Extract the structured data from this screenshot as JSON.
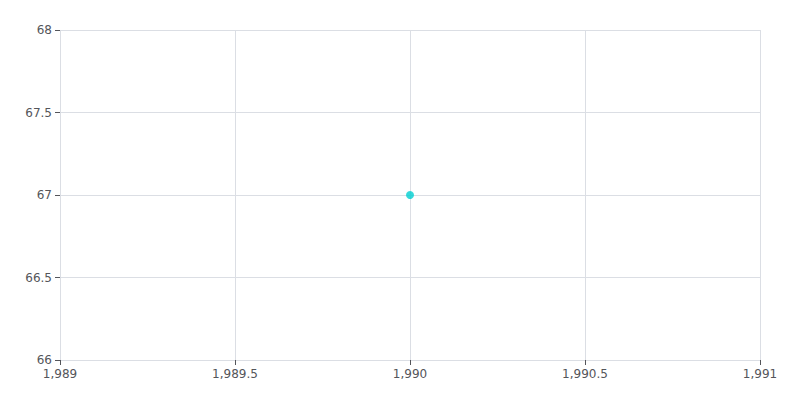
{
  "chart_data": {
    "type": "scatter",
    "x": [
      1990
    ],
    "values": [
      67.0
    ],
    "color": "#00CED1",
    "xlim": [
      1989,
      1991
    ],
    "xticks": [
      {
        "value": 1989,
        "label": "1,989"
      },
      {
        "value": 1989.5,
        "label": "1,989.5"
      },
      {
        "value": 1990,
        "label": "1,990"
      },
      {
        "value": 1990.5,
        "label": "1,990.5"
      },
      {
        "value": 1991,
        "label": "1,991"
      }
    ],
    "ylim": [
      66,
      68
    ],
    "yticks": [
      66,
      66.5,
      67,
      67.5,
      68
    ],
    "grid": true
  }
}
